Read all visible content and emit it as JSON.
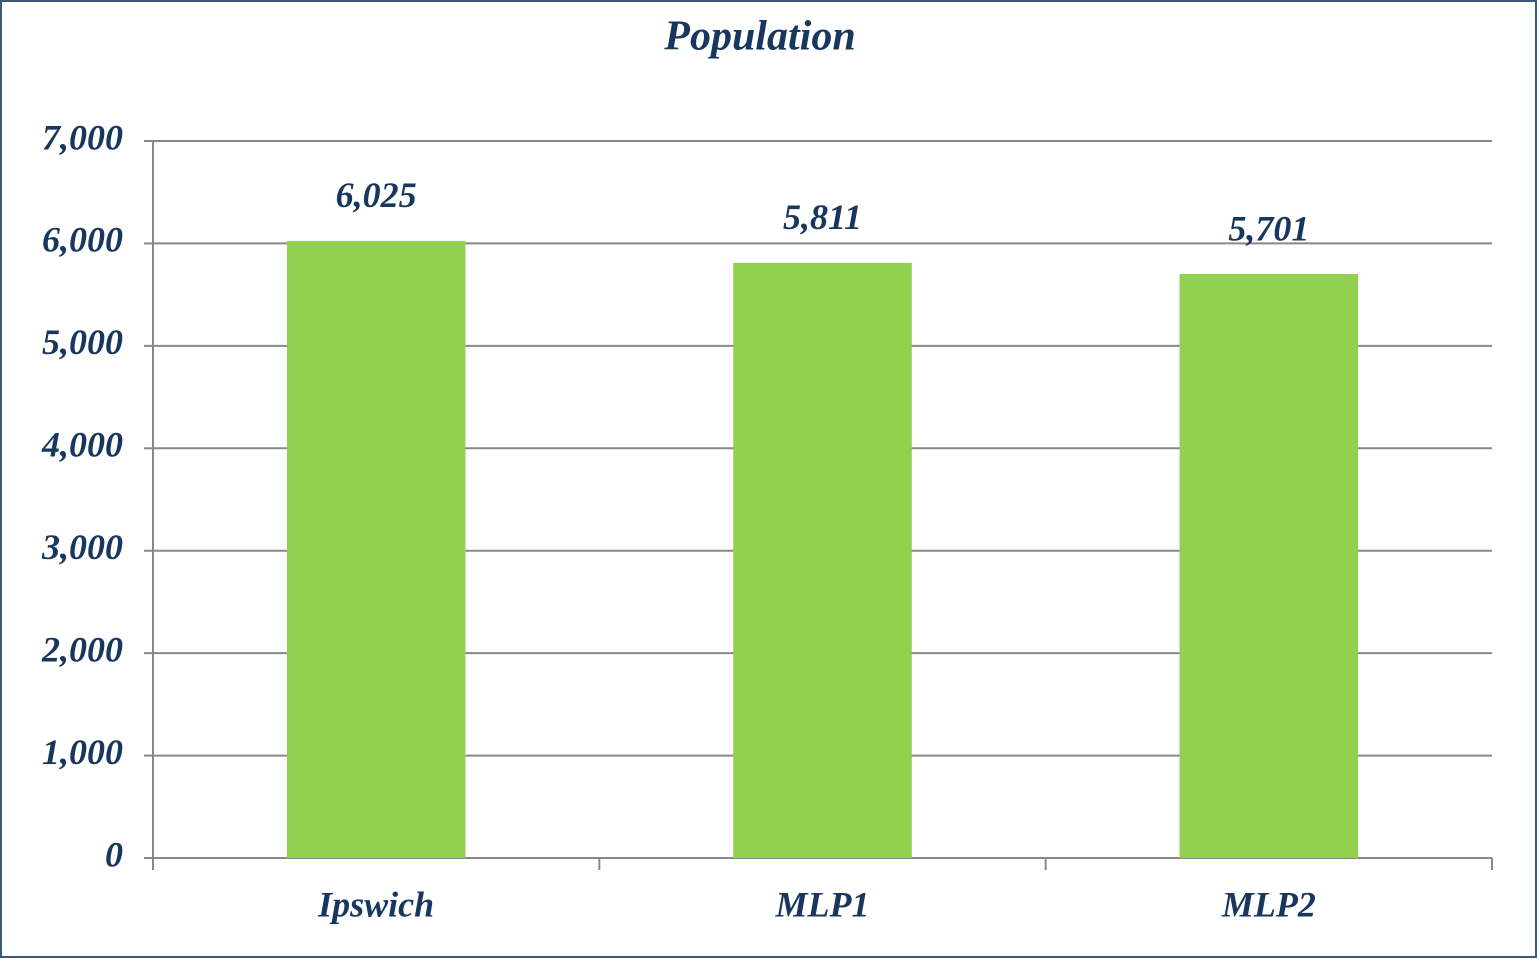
{
  "chart_data": {
    "type": "bar",
    "title": "Population",
    "categories": [
      "Ipswich",
      "MLP1",
      "MLP2"
    ],
    "values": [
      6025,
      5811,
      5701
    ],
    "value_labels": [
      "6,025",
      "5,811",
      "5,701"
    ],
    "color": "#92d050",
    "ylim": [
      0,
      7000
    ],
    "yticks": [
      0,
      {
        "value": 1000,
        "label": "1,000"
      },
      {
        "value": 2000,
        "label": "2,000"
      },
      {
        "value": 3000,
        "label": "3,000"
      },
      {
        "value": 4000,
        "label": "4,000"
      },
      {
        "value": 5000,
        "label": "5,000"
      },
      {
        "value": 6000,
        "label": "6,000"
      },
      {
        "value": 7000,
        "label": "7,000"
      }
    ],
    "grid": true
  }
}
